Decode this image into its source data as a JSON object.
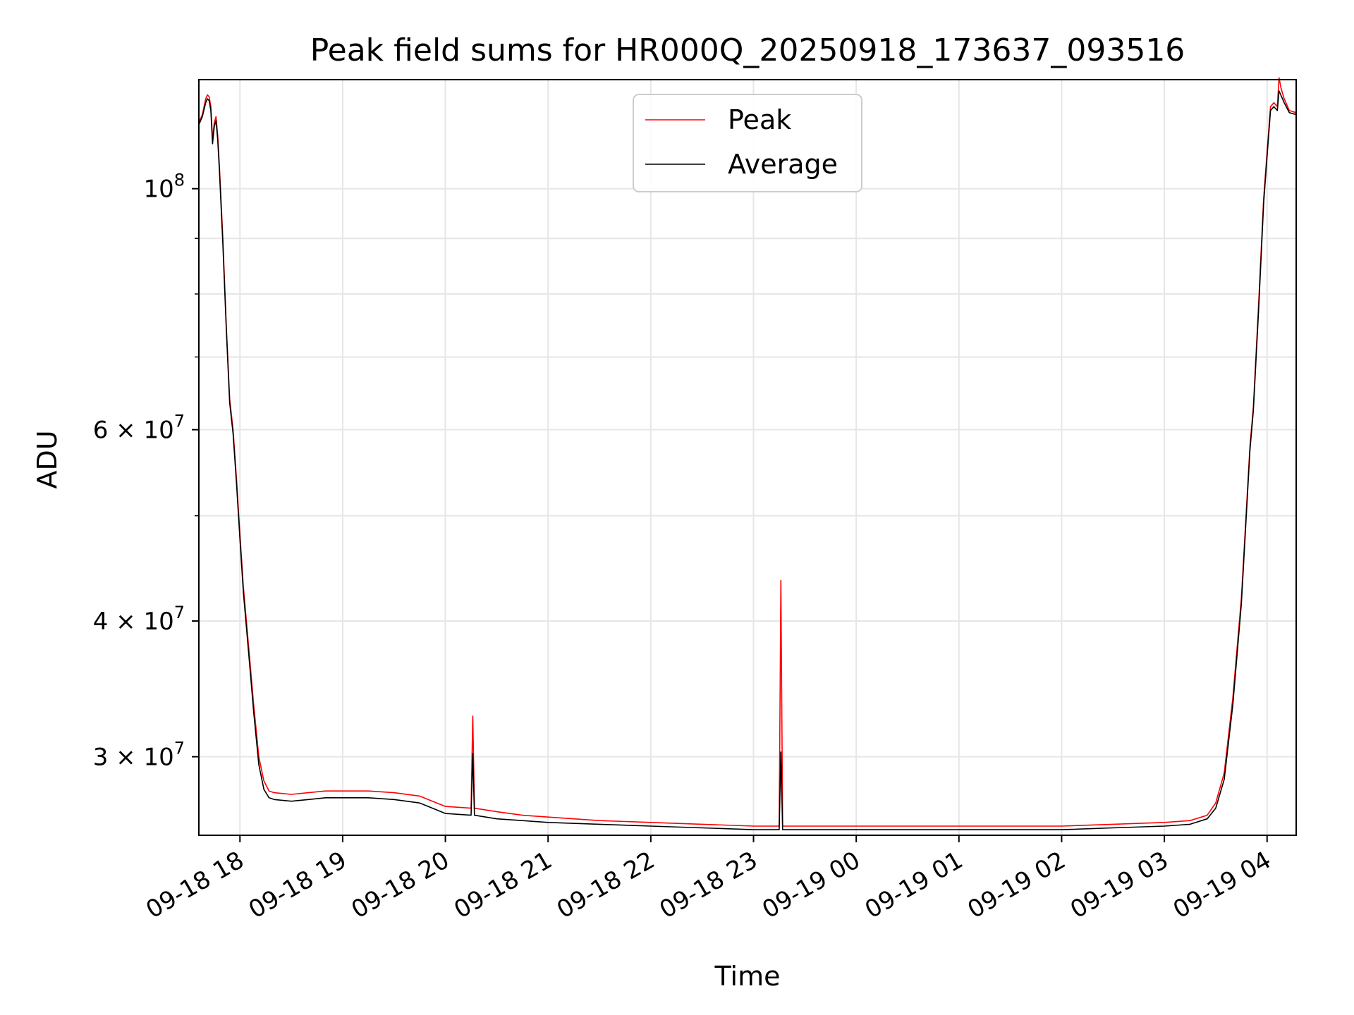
{
  "chart_data": {
    "type": "line",
    "title": "Peak field sums for HR000Q_20250918_173637_093516",
    "xlabel": "Time",
    "ylabel": "ADU",
    "yscale": "log",
    "ylim": [
      25400000,
      126000000
    ],
    "xlim": [
      "2025-09-18T17:36",
      "2025-09-19T04:17"
    ],
    "grid": true,
    "legend_position": "top-center",
    "x_ticks": [
      {
        "value": "2025-09-18T18:00",
        "label": "09-18 18"
      },
      {
        "value": "2025-09-18T19:00",
        "label": "09-18 19"
      },
      {
        "value": "2025-09-18T20:00",
        "label": "09-18 20"
      },
      {
        "value": "2025-09-18T21:00",
        "label": "09-18 21"
      },
      {
        "value": "2025-09-18T22:00",
        "label": "09-18 22"
      },
      {
        "value": "2025-09-18T23:00",
        "label": "09-18 23"
      },
      {
        "value": "2025-09-19T00:00",
        "label": "09-19 00"
      },
      {
        "value": "2025-09-19T01:00",
        "label": "09-19 01"
      },
      {
        "value": "2025-09-19T02:00",
        "label": "09-19 02"
      },
      {
        "value": "2025-09-19T03:00",
        "label": "09-19 03"
      },
      {
        "value": "2025-09-19T04:00",
        "label": "09-19 04"
      }
    ],
    "y_ticks": [
      {
        "value": 100000000,
        "label": "10",
        "exp": "8"
      },
      {
        "value": 60000000,
        "label": "6 × 10",
        "exp": "7"
      },
      {
        "value": 40000000,
        "label": "4 × 10",
        "exp": "7"
      },
      {
        "value": 30000000,
        "label": "3 × 10",
        "exp": "7"
      }
    ],
    "y_minor_ticks": [
      70000000,
      80000000,
      90000000,
      50000000
    ],
    "series": [
      {
        "name": "Peak",
        "color": "#ff0000",
        "points": [
          [
            "2025-09-18T17:36",
            115000000
          ],
          [
            "2025-09-18T17:38",
            117000000
          ],
          [
            "2025-09-18T17:40",
            121000000
          ],
          [
            "2025-09-18T17:41",
            122000000
          ],
          [
            "2025-09-18T17:42",
            121500000
          ],
          [
            "2025-09-18T17:43",
            119000000
          ],
          [
            "2025-09-18T17:44",
            111000000
          ],
          [
            "2025-09-18T17:45",
            115000000
          ],
          [
            "2025-09-18T17:46",
            116500000
          ],
          [
            "2025-09-18T17:47",
            112000000
          ],
          [
            "2025-09-18T17:48",
            105000000
          ],
          [
            "2025-09-18T17:50",
            90000000
          ],
          [
            "2025-09-18T17:52",
            75000000
          ],
          [
            "2025-09-18T17:54",
            64000000
          ],
          [
            "2025-09-18T17:56",
            60000000
          ],
          [
            "2025-09-18T17:58",
            54000000
          ],
          [
            "2025-09-18T18:00",
            48000000
          ],
          [
            "2025-09-18T18:02",
            43000000
          ],
          [
            "2025-09-18T18:05",
            38000000
          ],
          [
            "2025-09-18T18:08",
            33500000
          ],
          [
            "2025-09-18T18:11",
            30000000
          ],
          [
            "2025-09-18T18:14",
            28500000
          ],
          [
            "2025-09-18T18:17",
            27900000
          ],
          [
            "2025-09-18T18:20",
            27800000
          ],
          [
            "2025-09-18T18:30",
            27700000
          ],
          [
            "2025-09-18T18:40",
            27800000
          ],
          [
            "2025-09-18T18:50",
            27900000
          ],
          [
            "2025-09-18T19:00",
            27900000
          ],
          [
            "2025-09-18T19:15",
            27900000
          ],
          [
            "2025-09-18T19:30",
            27800000
          ],
          [
            "2025-09-18T19:45",
            27600000
          ],
          [
            "2025-09-18T19:55",
            27200000
          ],
          [
            "2025-09-18T20:00",
            27000000
          ],
          [
            "2025-09-18T20:15",
            26900000
          ],
          [
            "2025-09-18T20:16",
            32700000
          ],
          [
            "2025-09-18T20:17",
            26900000
          ],
          [
            "2025-09-18T20:30",
            26700000
          ],
          [
            "2025-09-18T20:45",
            26500000
          ],
          [
            "2025-09-18T21:00",
            26400000
          ],
          [
            "2025-09-18T21:30",
            26200000
          ],
          [
            "2025-09-18T22:00",
            26100000
          ],
          [
            "2025-09-18T22:30",
            26000000
          ],
          [
            "2025-09-18T23:00",
            25900000
          ],
          [
            "2025-09-18T23:15",
            25900000
          ],
          [
            "2025-09-18T23:16",
            43600000
          ],
          [
            "2025-09-18T23:17",
            25900000
          ],
          [
            "2025-09-18T23:30",
            25900000
          ],
          [
            "2025-09-19T00:00",
            25900000
          ],
          [
            "2025-09-19T00:30",
            25900000
          ],
          [
            "2025-09-19T01:00",
            25900000
          ],
          [
            "2025-09-19T01:30",
            25900000
          ],
          [
            "2025-09-19T02:00",
            25900000
          ],
          [
            "2025-09-19T02:30",
            26000000
          ],
          [
            "2025-09-19T03:00",
            26100000
          ],
          [
            "2025-09-19T03:15",
            26200000
          ],
          [
            "2025-09-19T03:25",
            26500000
          ],
          [
            "2025-09-19T03:30",
            27200000
          ],
          [
            "2025-09-19T03:35",
            29000000
          ],
          [
            "2025-09-19T03:40",
            34000000
          ],
          [
            "2025-09-19T03:45",
            42000000
          ],
          [
            "2025-09-19T03:50",
            58000000
          ],
          [
            "2025-09-19T03:52",
            63000000
          ],
          [
            "2025-09-19T03:55",
            78000000
          ],
          [
            "2025-09-19T03:58",
            98000000
          ],
          [
            "2025-09-19T04:00",
            108000000
          ],
          [
            "2025-09-19T04:02",
            119000000
          ],
          [
            "2025-09-19T04:04",
            120000000
          ],
          [
            "2025-09-19T04:06",
            119000000
          ],
          [
            "2025-09-19T04:07",
            126500000
          ],
          [
            "2025-09-19T04:08",
            124000000
          ],
          [
            "2025-09-19T04:10",
            121000000
          ],
          [
            "2025-09-19T04:13",
            118000000
          ],
          [
            "2025-09-19T04:17",
            117500000
          ]
        ]
      },
      {
        "name": "Average",
        "color": "#000000",
        "points": [
          [
            "2025-09-18T17:36",
            114500000
          ],
          [
            "2025-09-18T17:38",
            116500000
          ],
          [
            "2025-09-18T17:40",
            120000000
          ],
          [
            "2025-09-18T17:41",
            121000000
          ],
          [
            "2025-09-18T17:42",
            120500000
          ],
          [
            "2025-09-18T17:43",
            118000000
          ],
          [
            "2025-09-18T17:44",
            110000000
          ],
          [
            "2025-09-18T17:45",
            114000000
          ],
          [
            "2025-09-18T17:46",
            115500000
          ],
          [
            "2025-09-18T17:47",
            111000000
          ],
          [
            "2025-09-18T17:48",
            104000000
          ],
          [
            "2025-09-18T17:50",
            89000000
          ],
          [
            "2025-09-18T17:52",
            74500000
          ],
          [
            "2025-09-18T17:54",
            63500000
          ],
          [
            "2025-09-18T17:56",
            59500000
          ],
          [
            "2025-09-18T17:58",
            53500000
          ],
          [
            "2025-09-18T18:00",
            47500000
          ],
          [
            "2025-09-18T18:02",
            42500000
          ],
          [
            "2025-09-18T18:05",
            37500000
          ],
          [
            "2025-09-18T18:08",
            33000000
          ],
          [
            "2025-09-18T18:11",
            29500000
          ],
          [
            "2025-09-18T18:14",
            28000000
          ],
          [
            "2025-09-18T18:17",
            27500000
          ],
          [
            "2025-09-18T18:20",
            27400000
          ],
          [
            "2025-09-18T18:30",
            27300000
          ],
          [
            "2025-09-18T18:40",
            27400000
          ],
          [
            "2025-09-18T18:50",
            27500000
          ],
          [
            "2025-09-18T19:00",
            27500000
          ],
          [
            "2025-09-18T19:15",
            27500000
          ],
          [
            "2025-09-18T19:30",
            27400000
          ],
          [
            "2025-09-18T19:45",
            27200000
          ],
          [
            "2025-09-18T19:55",
            26800000
          ],
          [
            "2025-09-18T20:00",
            26600000
          ],
          [
            "2025-09-18T20:15",
            26500000
          ],
          [
            "2025-09-18T20:16",
            30200000
          ],
          [
            "2025-09-18T20:17",
            26500000
          ],
          [
            "2025-09-18T20:30",
            26300000
          ],
          [
            "2025-09-18T20:45",
            26200000
          ],
          [
            "2025-09-18T21:00",
            26100000
          ],
          [
            "2025-09-18T21:30",
            26000000
          ],
          [
            "2025-09-18T22:00",
            25900000
          ],
          [
            "2025-09-18T22:30",
            25800000
          ],
          [
            "2025-09-18T23:00",
            25700000
          ],
          [
            "2025-09-18T23:15",
            25700000
          ],
          [
            "2025-09-18T23:16",
            30300000
          ],
          [
            "2025-09-18T23:17",
            25700000
          ],
          [
            "2025-09-18T23:30",
            25700000
          ],
          [
            "2025-09-19T00:00",
            25700000
          ],
          [
            "2025-09-19T00:30",
            25700000
          ],
          [
            "2025-09-19T01:00",
            25700000
          ],
          [
            "2025-09-19T01:30",
            25700000
          ],
          [
            "2025-09-19T02:00",
            25700000
          ],
          [
            "2025-09-19T02:30",
            25800000
          ],
          [
            "2025-09-19T03:00",
            25900000
          ],
          [
            "2025-09-19T03:15",
            26000000
          ],
          [
            "2025-09-19T03:25",
            26300000
          ],
          [
            "2025-09-19T03:30",
            26900000
          ],
          [
            "2025-09-19T03:35",
            28600000
          ],
          [
            "2025-09-19T03:40",
            33500000
          ],
          [
            "2025-09-19T03:45",
            41500000
          ],
          [
            "2025-09-19T03:50",
            57500000
          ],
          [
            "2025-09-19T03:52",
            62500000
          ],
          [
            "2025-09-19T03:55",
            77000000
          ],
          [
            "2025-09-19T03:58",
            97000000
          ],
          [
            "2025-09-19T04:00",
            107000000
          ],
          [
            "2025-09-19T04:02",
            118000000
          ],
          [
            "2025-09-19T04:04",
            119000000
          ],
          [
            "2025-09-19T04:06",
            118000000
          ],
          [
            "2025-09-19T04:07",
            123000000
          ],
          [
            "2025-09-19T04:08",
            122000000
          ],
          [
            "2025-09-19T04:10",
            120000000
          ],
          [
            "2025-09-19T04:13",
            117500000
          ],
          [
            "2025-09-19T04:17",
            117000000
          ]
        ]
      }
    ]
  }
}
